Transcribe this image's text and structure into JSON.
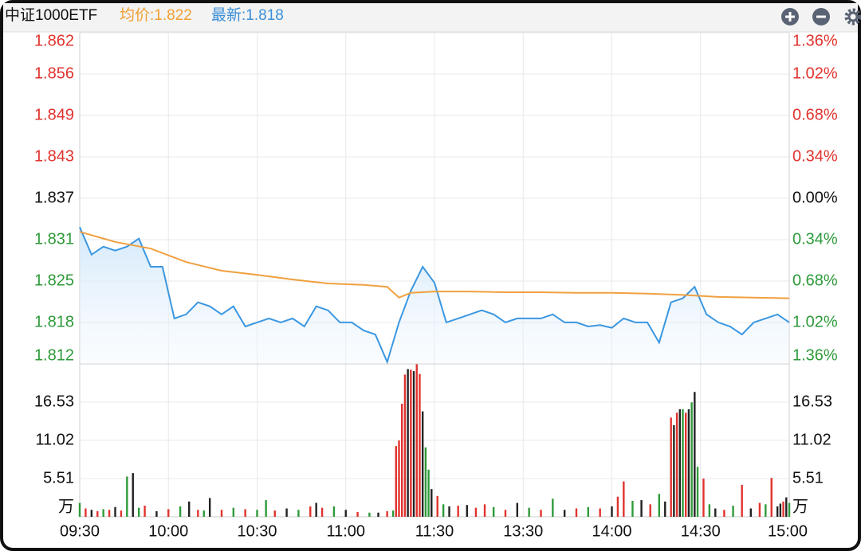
{
  "chart_data": [
    {
      "type": "line",
      "title": "中证1000ETF",
      "avg_label": "均价:1.822",
      "last_label": "最新:1.818",
      "xlim": [
        0,
        240
      ],
      "xticks": [
        {
          "value": 0,
          "label": "09:30"
        },
        {
          "value": 30,
          "label": "10:00"
        },
        {
          "value": 60,
          "label": "10:30"
        },
        {
          "value": 90,
          "label": "11:00"
        },
        {
          "value": 120,
          "label": "11:30"
        },
        {
          "value": 150,
          "label": "13:30"
        },
        {
          "value": 180,
          "label": "14:00"
        },
        {
          "value": 210,
          "label": "14:30"
        },
        {
          "value": 240,
          "label": "15:00"
        }
      ],
      "ylim": [
        1.81232,
        1.86168
      ],
      "yticks": [
        {
          "value": 1.86168,
          "label": "1.862"
        },
        {
          "value": 1.85551,
          "label": "1.856"
        },
        {
          "value": 1.84934,
          "label": "1.849"
        },
        {
          "value": 1.84317,
          "label": "1.843"
        },
        {
          "value": 1.837,
          "label": "1.837"
        },
        {
          "value": 1.83083,
          "label": "1.831"
        },
        {
          "value": 1.82466,
          "label": "1.825"
        },
        {
          "value": 1.81849,
          "label": "1.818"
        },
        {
          "value": 1.81232,
          "label": "1.812"
        }
      ],
      "ytick_colors": [
        "#e0332e",
        "#e0332e",
        "#e0332e",
        "#e0332e",
        "#111111",
        "#2e9a3a",
        "#2e9a3a",
        "#2e9a3a",
        "#2e9a3a"
      ],
      "y2lim": [
        -1.36,
        1.36
      ],
      "y2ticks": [
        {
          "value": 1.36,
          "label": "1.36%"
        },
        {
          "value": 1.02,
          "label": "1.02%"
        },
        {
          "value": 0.68,
          "label": "0.68%"
        },
        {
          "value": 0.34,
          "label": "0.34%"
        },
        {
          "value": 0,
          "label": "0.00%"
        },
        {
          "value": -0.34,
          "label": "0.34%"
        },
        {
          "value": -0.68,
          "label": "0.68%"
        },
        {
          "value": -1.02,
          "label": "1.02%"
        },
        {
          "value": -1.36,
          "label": "1.36%"
        }
      ],
      "grid": true,
      "series": [
        {
          "color": "#3b97e0",
          "x": [
            0,
            4,
            8,
            12,
            16,
            20,
            24,
            28,
            32,
            36,
            40,
            44,
            48,
            52,
            56,
            60,
            64,
            68,
            72,
            76,
            80,
            84,
            88,
            92,
            96,
            100,
            104,
            108,
            112,
            116,
            120,
            124,
            128,
            132,
            136,
            140,
            144,
            148,
            152,
            156,
            160,
            164,
            168,
            172,
            176,
            180,
            184,
            188,
            192,
            196,
            200,
            204,
            208,
            212,
            216,
            220,
            224,
            228,
            232,
            236,
            240
          ],
          "values": [
            1.8327,
            1.8286,
            1.8298,
            1.8292,
            1.8298,
            1.831,
            1.8268,
            1.8268,
            1.8191,
            1.8197,
            1.8215,
            1.8209,
            1.8197,
            1.8209,
            1.8179,
            1.8185,
            1.8191,
            1.8185,
            1.8191,
            1.8179,
            1.8209,
            1.8203,
            1.8185,
            1.8185,
            1.8173,
            1.8167,
            1.8126,
            1.8185,
            1.8232,
            1.8268,
            1.8244,
            1.8185,
            1.8191,
            1.8197,
            1.8203,
            1.8197,
            1.8185,
            1.8191,
            1.8191,
            1.8191,
            1.8197,
            1.8185,
            1.8185,
            1.8179,
            1.8181,
            1.8177,
            1.8191,
            1.8185,
            1.8185,
            1.8155,
            1.8215,
            1.8221,
            1.8238,
            1.8197,
            1.8185,
            1.8179,
            1.8167,
            1.8185,
            1.8191,
            1.8197,
            1.8185
          ]
        },
        {
          "color": "#f0a040",
          "x": [
            0,
            12,
            24,
            36,
            48,
            60,
            72,
            84,
            96,
            104,
            108,
            112,
            120,
            132,
            144,
            156,
            168,
            180,
            192,
            204,
            216,
            228,
            240
          ],
          "values": [
            1.832,
            1.8305,
            1.8295,
            1.8275,
            1.8262,
            1.8256,
            1.8249,
            1.8243,
            1.8241,
            1.8238,
            1.8222,
            1.8229,
            1.8231,
            1.8231,
            1.823,
            1.823,
            1.8229,
            1.8229,
            1.8228,
            1.8226,
            1.8223,
            1.8222,
            1.8221
          ]
        }
      ]
    },
    {
      "type": "bar",
      "unit": "万",
      "xlim": [
        0,
        240
      ],
      "ylim": [
        0,
        21.93
      ],
      "yticks": [
        5.51,
        11.02,
        16.53
      ],
      "x": [
        0,
        2,
        4,
        6,
        8,
        10,
        12,
        14,
        16,
        18,
        20,
        22,
        26,
        30,
        34,
        37,
        40,
        42,
        44,
        48,
        52,
        56,
        60,
        63,
        66,
        70,
        74,
        78,
        80,
        82,
        86,
        90,
        94,
        98,
        101,
        104,
        106,
        107,
        108,
        109,
        110,
        111,
        112,
        113,
        114,
        115,
        116,
        117,
        118,
        119,
        121,
        123,
        125,
        128,
        131,
        134,
        137,
        140,
        144,
        148,
        152,
        156,
        160,
        164,
        168,
        172,
        176,
        180,
        182,
        184,
        187,
        190,
        193,
        196,
        198,
        200,
        201,
        202,
        203,
        204,
        205,
        206,
        207,
        208,
        209,
        211,
        213,
        215,
        218,
        221,
        224,
        227,
        230,
        232,
        234,
        236,
        237,
        238,
        239,
        240
      ],
      "values": [
        2.0,
        1.2,
        1.0,
        0.8,
        1.1,
        1.0,
        1.4,
        0.9,
        5.8,
        6.3,
        1.3,
        1.6,
        0.8,
        1.1,
        1.5,
        2.2,
        1.0,
        0.9,
        2.7,
        1.0,
        1.3,
        1.1,
        1.0,
        2.4,
        0.9,
        1.2,
        1.0,
        1.5,
        2.0,
        1.3,
        1.5,
        1.0,
        0.7,
        0.6,
        0.6,
        0.8,
        0.9,
        10.2,
        11.0,
        16.3,
        20.5,
        21.3,
        21.2,
        21.0,
        22.0,
        20.6,
        15.2,
        10.0,
        6.8,
        4.0,
        3.0,
        1.8,
        1.5,
        1.6,
        1.7,
        1.3,
        1.8,
        1.4,
        1.0,
        2.0,
        1.3,
        1.0,
        2.6,
        1.0,
        1.2,
        1.4,
        1.2,
        1.5,
        2.9,
        5.1,
        2.3,
        2.4,
        1.8,
        3.3,
        2.2,
        14.3,
        13.2,
        15.0,
        15.5,
        15.5,
        15.0,
        15.5,
        16.5,
        18.0,
        7.2,
        5.5,
        1.8,
        1.2,
        1.0,
        1.6,
        4.6,
        1.2,
        2.0,
        1.8,
        5.6,
        1.5,
        1.9,
        2.2,
        2.8,
        2.0
      ],
      "colors": [
        "#2e9a3a",
        "#e0332e",
        "#222222",
        "#e0332e",
        "#2e9a3a",
        "#e0332e",
        "#222222",
        "#e0332e",
        "#2e9a3a",
        "#222222",
        "#2e9a3a",
        "#e0332e",
        "#222222",
        "#e0332e",
        "#2e9a3a",
        "#222222",
        "#e0332e",
        "#2e9a3a",
        "#222222",
        "#e0332e",
        "#2e9a3a",
        "#e0332e",
        "#2e9a3a",
        "#2e9a3a",
        "#e0332e",
        "#222222",
        "#2e9a3a",
        "#e0332e",
        "#222222",
        "#e0332e",
        "#2e9a3a",
        "#222222",
        "#e0332e",
        "#2e9a3a",
        "#222222",
        "#e0332e",
        "#2e9a3a",
        "#e0332e",
        "#e0332e",
        "#e0332e",
        "#e0332e",
        "#222222",
        "#e0332e",
        "#222222",
        "#e0332e",
        "#e0332e",
        "#222222",
        "#2e9a3a",
        "#2e9a3a",
        "#222222",
        "#e0332e",
        "#2e9a3a",
        "#222222",
        "#e0332e",
        "#222222",
        "#e0332e",
        "#e0332e",
        "#2e9a3a",
        "#e0332e",
        "#222222",
        "#2e9a3a",
        "#e0332e",
        "#2e9a3a",
        "#222222",
        "#e0332e",
        "#2e9a3a",
        "#e0332e",
        "#222222",
        "#e0332e",
        "#e0332e",
        "#2e9a3a",
        "#222222",
        "#e0332e",
        "#2e9a3a",
        "#222222",
        "#e0332e",
        "#222222",
        "#e0332e",
        "#222222",
        "#2e9a3a",
        "#e0332e",
        "#222222",
        "#2e9a3a",
        "#222222",
        "#2e9a3a",
        "#e0332e",
        "#2e9a3a",
        "#222222",
        "#e0332e",
        "#2e9a3a",
        "#e0332e",
        "#222222",
        "#e0332e",
        "#2e9a3a",
        "#e0332e",
        "#222222",
        "#222222",
        "#e0332e",
        "#222222",
        "#2e9a3a"
      ]
    }
  ]
}
